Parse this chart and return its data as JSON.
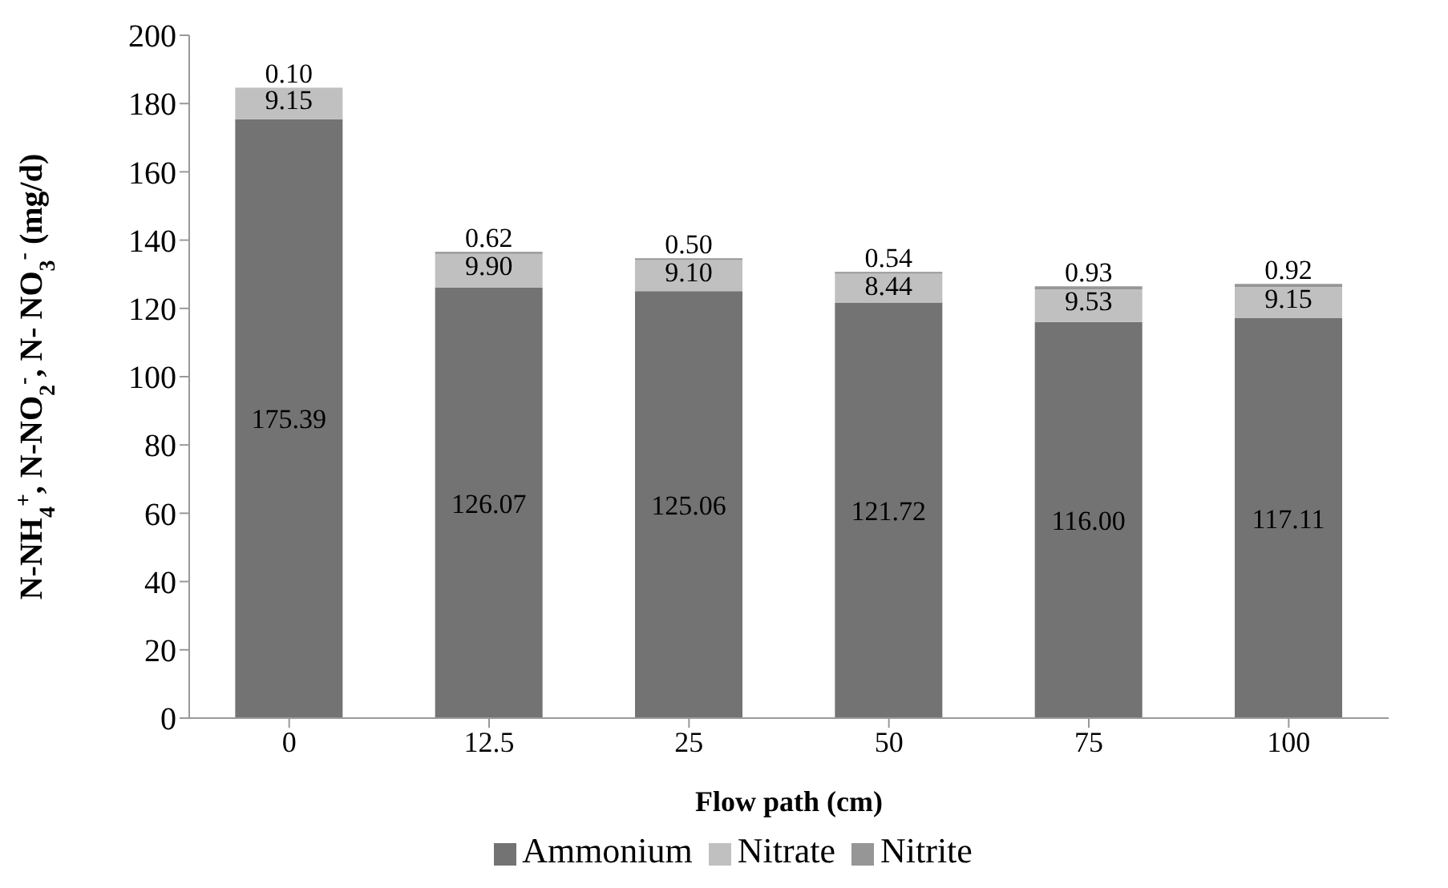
{
  "chart_data": {
    "type": "bar",
    "stacked": true,
    "xlabel": "Flow path (cm)",
    "ylabel": "N-NH$_{4}$$^{+}$, N-NO$_{2}$$^{-}$, N- NO$_{3}$$^{-}$  (mg/d)",
    "categories": [
      "0",
      "12.5",
      "25",
      "50",
      "75",
      "100"
    ],
    "series": [
      {
        "name": "Ammonium",
        "color": "#737373",
        "values": [
          175.39,
          126.07,
          125.06,
          121.72,
          116.0,
          117.11
        ],
        "value_labels": [
          "175.39",
          "126.07",
          "125.06",
          "121.72",
          "116.00",
          "117.11"
        ]
      },
      {
        "name": "Nitrate",
        "color": "#c0c0c0",
        "values": [
          9.15,
          9.9,
          9.1,
          8.44,
          9.53,
          9.15
        ],
        "value_labels": [
          "9.15",
          "9.90",
          "9.10",
          "8.44",
          "9.53",
          "9.15"
        ]
      },
      {
        "name": "Nitrite",
        "color": "#969696",
        "values": [
          0.1,
          0.62,
          0.5,
          0.54,
          0.93,
          0.92
        ],
        "value_labels": [
          "0.10",
          "0.62",
          "0.50",
          "0.54",
          "0.93",
          "0.92"
        ]
      }
    ],
    "ylim": [
      0,
      200
    ],
    "yticks": [
      0,
      20,
      40,
      60,
      80,
      100,
      120,
      140,
      160,
      180,
      200
    ],
    "grid": false,
    "legend": "bottom"
  }
}
